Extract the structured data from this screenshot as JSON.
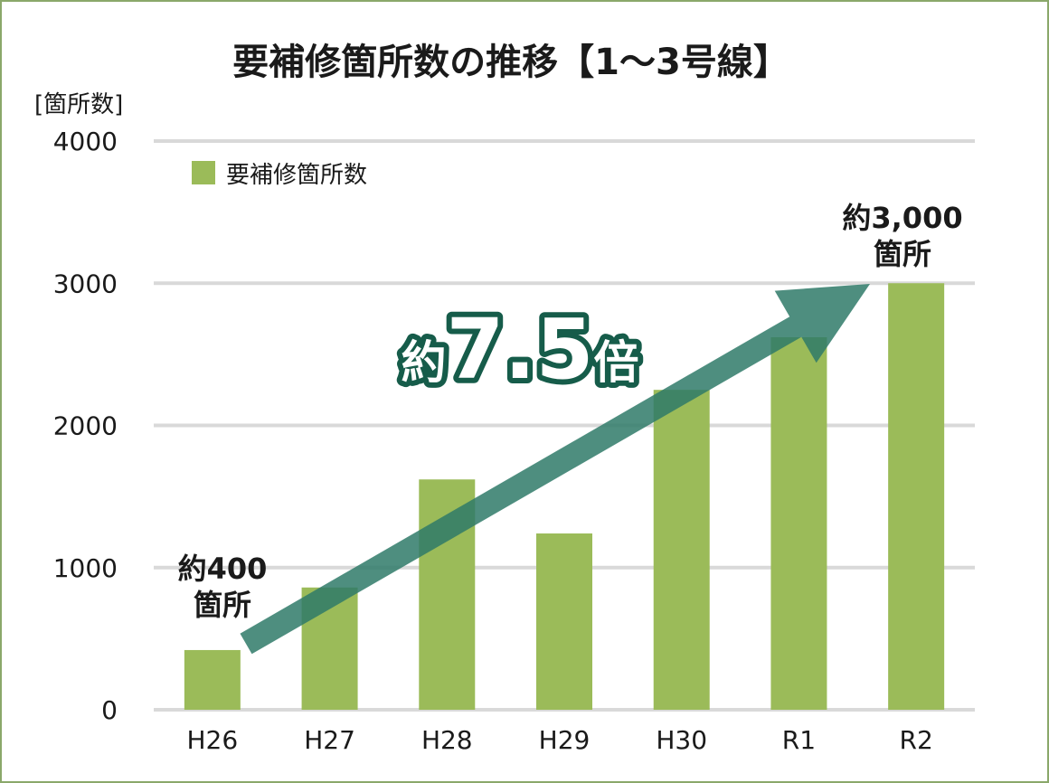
{
  "chart_data": {
    "type": "bar",
    "title": "要補修箇所数の推移【1～3号線】",
    "ylabel": "[箇所数]",
    "categories": [
      "H26",
      "H27",
      "H28",
      "H29",
      "H30",
      "R1",
      "R2"
    ],
    "series": [
      {
        "name": "要補修箇所数",
        "values": [
          420,
          860,
          1620,
          1240,
          2250,
          2620,
          3000
        ]
      }
    ],
    "ylim": [
      0,
      4000
    ],
    "yticks": [
      0,
      1000,
      2000,
      3000,
      4000
    ],
    "grid": true,
    "legend": "top-left",
    "colors": {
      "bar": "#9bbb59",
      "arrow": "#2f7a68",
      "badge_outline": "#165c4a"
    },
    "annotations": {
      "start_line1": "約400",
      "start_line2": "箇所",
      "end_line1": "約3,000",
      "end_line2": "箇所",
      "badge_prefix": "約",
      "badge_number": "7.5",
      "badge_suffix": "倍"
    }
  }
}
